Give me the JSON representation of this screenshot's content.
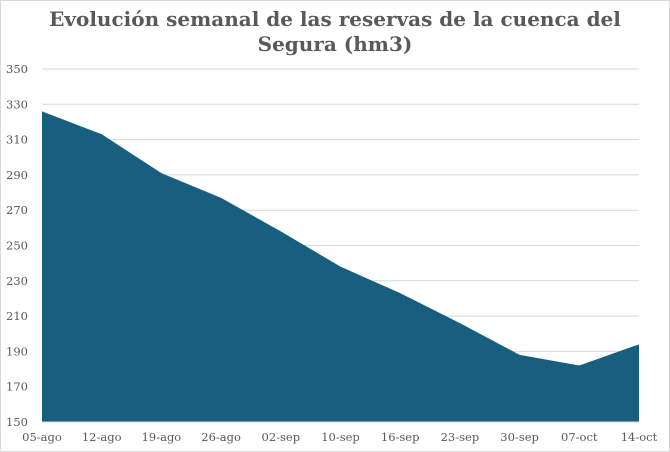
{
  "chart_data": {
    "type": "area",
    "title": "Evolución semanal de las reservas de la cuenca del Segura (hm3)",
    "title_lines": [
      "Evolución semanal de las reservas de la cuenca del",
      "Segura (hm3)"
    ],
    "categories": [
      "05-ago",
      "12-ago",
      "19-ago",
      "26-ago",
      "02-sep",
      "10-sep",
      "16-sep",
      "23-sep",
      "30-sep",
      "07-oct",
      "14-oct"
    ],
    "series": [
      {
        "values": [
          326,
          313,
          291,
          277,
          258,
          238,
          223,
          206,
          188,
          182,
          194
        ],
        "color": "#175E7F"
      }
    ],
    "ylim": [
      150,
      350
    ],
    "yticks": [
      150,
      170,
      190,
      210,
      230,
      250,
      270,
      290,
      310,
      330,
      350
    ],
    "grid": true,
    "gridColor": "#d9d9d9",
    "xlabel": "",
    "ylabel": ""
  }
}
